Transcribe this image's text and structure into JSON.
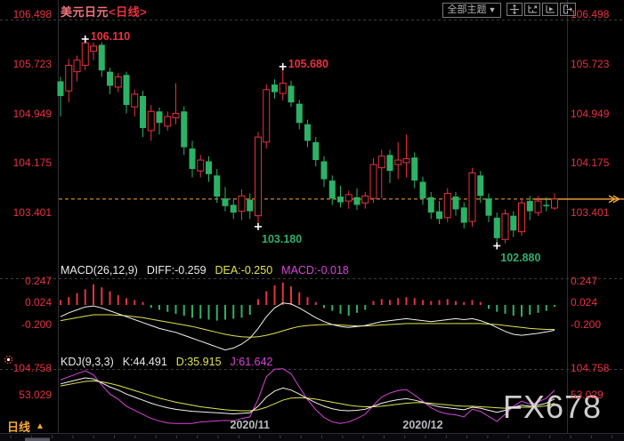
{
  "window": {
    "symbol": "美元日元",
    "period_suffix": "<日线>"
  },
  "toolbar": {
    "theme_selector": "全部主题",
    "theme_arrow": "▼",
    "icons": [
      "pan-icon",
      "axis-scale-icon",
      "axis-play-icon",
      "detach-window-icon"
    ]
  },
  "colors": {
    "red": "#e8323e",
    "green": "#2cb266",
    "orange": "#f7a838",
    "yellow": "#e3e34c",
    "magenta": "#d944d9",
    "white": "#ffffff",
    "separator": "#3c3c44",
    "frame": "#2e2e36",
    "date_text": "#b9b9c0"
  },
  "macd_row": {
    "title": "MACD(26,12,9)",
    "diff": "DIFF:-0.259",
    "dea": "DEA:-0.250",
    "macd": "MACD:-0.018"
  },
  "kdj_row": {
    "title": "KDJ(9,3,3)",
    "k": "K:44.491",
    "d": "D:35.915",
    "j": "J:61.642"
  },
  "footer": {
    "period_tab": "日线",
    "tab_arrow": "▲"
  },
  "watermark": "FX678",
  "right_line_marker": "≫",
  "chart_data": {
    "type": "candlestick",
    "symbol": "美元日元",
    "period": "日线",
    "price_axis_ticks": [
      "106.498",
      "105.723",
      "104.949",
      "104.175",
      "103.401"
    ],
    "price_axis_values": [
      106.498,
      105.723,
      104.949,
      104.175,
      103.401
    ],
    "last_price_line": 103.61,
    "x_tick_labels": [
      "2020/11",
      "2020/12"
    ],
    "x_tick_indices": [
      23,
      44
    ],
    "annotations": [
      {
        "text": "106.110",
        "price": 106.11,
        "index": 3,
        "kind": "high"
      },
      {
        "text": "105.680",
        "price": 105.68,
        "index": 27,
        "kind": "high"
      },
      {
        "text": "103.180",
        "price": 103.18,
        "index": 24,
        "kind": "low"
      },
      {
        "text": "102.880",
        "price": 102.88,
        "index": 53,
        "kind": "low"
      }
    ],
    "candles_ohlc": [
      [
        105.45,
        105.52,
        104.9,
        105.22
      ],
      [
        105.3,
        105.8,
        105.12,
        105.7
      ],
      [
        105.6,
        105.85,
        105.45,
        105.78
      ],
      [
        105.7,
        106.11,
        105.62,
        106.05
      ],
      [
        105.92,
        106.06,
        105.78,
        106.0
      ],
      [
        106.02,
        106.06,
        105.52,
        105.62
      ],
      [
        105.6,
        105.66,
        105.25,
        105.38
      ],
      [
        105.36,
        105.58,
        105.28,
        105.52
      ],
      [
        105.55,
        105.6,
        104.95,
        105.08
      ],
      [
        105.05,
        105.32,
        104.9,
        105.25
      ],
      [
        105.22,
        105.3,
        104.58,
        104.72
      ],
      [
        104.68,
        105.08,
        104.52,
        104.98
      ],
      [
        104.98,
        105.04,
        104.62,
        104.8
      ],
      [
        104.75,
        104.98,
        104.68,
        104.9
      ],
      [
        104.88,
        105.42,
        104.78,
        104.95
      ],
      [
        104.98,
        105.06,
        104.3,
        104.42
      ],
      [
        104.4,
        104.52,
        103.95,
        104.08
      ],
      [
        104.05,
        104.3,
        103.95,
        104.22
      ],
      [
        104.2,
        104.28,
        103.88,
        104.0
      ],
      [
        103.98,
        104.08,
        103.55,
        103.65
      ],
      [
        103.62,
        103.8,
        103.42,
        103.5
      ],
      [
        103.52,
        103.6,
        103.3,
        103.4
      ],
      [
        103.42,
        103.76,
        103.28,
        103.66
      ],
      [
        103.6,
        103.7,
        103.3,
        103.42
      ],
      [
        103.35,
        104.66,
        103.18,
        104.58
      ],
      [
        104.5,
        105.4,
        104.4,
        105.32
      ],
      [
        105.4,
        105.48,
        105.18,
        105.28
      ],
      [
        105.26,
        105.68,
        105.15,
        105.42
      ],
      [
        105.38,
        105.46,
        105.05,
        105.12
      ],
      [
        105.1,
        105.16,
        104.7,
        104.8
      ],
      [
        104.78,
        104.85,
        104.42,
        104.52
      ],
      [
        104.5,
        104.58,
        104.12,
        104.22
      ],
      [
        104.2,
        104.28,
        103.8,
        103.92
      ],
      [
        103.9,
        103.98,
        103.52,
        103.62
      ],
      [
        103.65,
        103.82,
        103.48,
        103.56
      ],
      [
        103.58,
        103.74,
        103.46,
        103.68
      ],
      [
        103.64,
        103.78,
        103.44,
        103.52
      ],
      [
        103.55,
        103.72,
        103.46,
        103.66
      ],
      [
        103.62,
        104.25,
        103.55,
        104.15
      ],
      [
        104.1,
        104.38,
        103.62,
        104.28
      ],
      [
        104.3,
        104.38,
        103.86,
        104.05
      ],
      [
        104.15,
        104.5,
        103.92,
        104.22
      ],
      [
        104.18,
        104.62,
        103.95,
        104.24
      ],
      [
        104.26,
        104.34,
        103.78,
        103.9
      ],
      [
        103.88,
        103.96,
        103.52,
        103.62
      ],
      [
        103.64,
        103.72,
        103.3,
        103.4
      ],
      [
        103.42,
        103.58,
        103.22,
        103.3
      ],
      [
        103.32,
        103.78,
        103.25,
        103.7
      ],
      [
        103.65,
        103.72,
        103.35,
        103.45
      ],
      [
        103.48,
        103.56,
        103.15,
        103.24
      ],
      [
        103.26,
        104.1,
        103.18,
        104.02
      ],
      [
        103.98,
        104.05,
        103.55,
        103.66
      ],
      [
        103.62,
        103.7,
        103.25,
        103.35
      ],
      [
        103.32,
        103.4,
        102.88,
        103.0
      ],
      [
        102.98,
        103.45,
        102.92,
        103.38
      ],
      [
        103.35,
        103.42,
        103.02,
        103.12
      ],
      [
        103.1,
        103.62,
        103.04,
        103.55
      ],
      [
        103.58,
        103.66,
        103.28,
        103.42
      ],
      [
        103.4,
        103.66,
        103.35,
        103.58
      ],
      [
        103.52,
        103.64,
        103.42,
        103.5
      ],
      [
        103.47,
        103.7,
        103.44,
        103.61
      ]
    ],
    "macd": {
      "axis_ticks": [
        "0.247",
        "0.024",
        "-0.200"
      ],
      "axis_values": [
        0.247,
        0.024,
        -0.2
      ],
      "hist": [
        0.05,
        0.08,
        0.12,
        0.16,
        0.21,
        0.18,
        0.14,
        0.1,
        0.07,
        0.05,
        0.03,
        -0.03,
        -0.05,
        -0.07,
        -0.09,
        -0.11,
        -0.13,
        -0.14,
        -0.15,
        -0.16,
        -0.15,
        -0.14,
        -0.13,
        -0.1,
        0.06,
        0.14,
        0.2,
        0.23,
        0.19,
        0.13,
        0.08,
        0.03,
        -0.03,
        -0.06,
        -0.09,
        -0.11,
        -0.08,
        -0.05,
        0.04,
        0.06,
        0.05,
        0.07,
        0.08,
        0.07,
        0.05,
        0.04,
        0.05,
        0.06,
        0.04,
        0.03,
        0.05,
        0.03,
        -0.04,
        -0.07,
        -0.09,
        -0.11,
        -0.12,
        -0.1,
        -0.08,
        -0.06,
        -0.018
      ],
      "diff": [
        -0.12,
        -0.08,
        -0.05,
        -0.02,
        -0.01,
        -0.03,
        -0.06,
        -0.09,
        -0.12,
        -0.15,
        -0.18,
        -0.21,
        -0.24,
        -0.26,
        -0.28,
        -0.31,
        -0.34,
        -0.37,
        -0.4,
        -0.43,
        -0.46,
        -0.44,
        -0.4,
        -0.34,
        -0.24,
        -0.12,
        -0.03,
        0.02,
        0.01,
        -0.03,
        -0.08,
        -0.13,
        -0.17,
        -0.2,
        -0.22,
        -0.23,
        -0.22,
        -0.21,
        -0.19,
        -0.17,
        -0.16,
        -0.15,
        -0.14,
        -0.15,
        -0.16,
        -0.17,
        -0.16,
        -0.15,
        -0.14,
        -0.15,
        -0.14,
        -0.16,
        -0.19,
        -0.23,
        -0.27,
        -0.3,
        -0.31,
        -0.3,
        -0.29,
        -0.275,
        -0.259
      ],
      "dea": [
        -0.16,
        -0.145,
        -0.13,
        -0.115,
        -0.1,
        -0.1,
        -0.1,
        -0.105,
        -0.11,
        -0.12,
        -0.13,
        -0.145,
        -0.16,
        -0.175,
        -0.19,
        -0.205,
        -0.22,
        -0.24,
        -0.26,
        -0.28,
        -0.3,
        -0.315,
        -0.325,
        -0.33,
        -0.325,
        -0.31,
        -0.29,
        -0.265,
        -0.24,
        -0.22,
        -0.21,
        -0.205,
        -0.2,
        -0.2,
        -0.205,
        -0.21,
        -0.215,
        -0.215,
        -0.21,
        -0.205,
        -0.2,
        -0.195,
        -0.19,
        -0.19,
        -0.19,
        -0.19,
        -0.19,
        -0.19,
        -0.19,
        -0.19,
        -0.19,
        -0.19,
        -0.195,
        -0.2,
        -0.21,
        -0.22,
        -0.23,
        -0.24,
        -0.245,
        -0.25,
        -0.25
      ]
    },
    "kdj": {
      "axis_ticks": [
        "104.758",
        "53.029"
      ],
      "axis_values": [
        104.758,
        53.029
      ],
      "k": [
        74,
        78,
        82,
        86,
        84,
        76,
        68,
        62,
        54,
        48,
        42,
        36,
        31,
        27,
        24,
        22,
        20,
        19,
        18,
        17,
        16,
        15,
        16,
        17,
        30,
        48,
        60,
        66,
        62,
        54,
        45,
        37,
        30,
        25,
        22,
        21,
        22,
        24,
        30,
        36,
        40,
        43,
        45,
        42,
        38,
        33,
        29,
        27,
        25,
        23,
        28,
        26,
        22,
        18,
        22,
        28,
        32,
        30,
        32,
        36,
        44.491
      ],
      "d": [
        70,
        73,
        76,
        79,
        80,
        78,
        75,
        71,
        66,
        61,
        56,
        51,
        46,
        42,
        38,
        35,
        32,
        29,
        27,
        25,
        23,
        22,
        21,
        21,
        23,
        28,
        35,
        42,
        46,
        47,
        46,
        44,
        41,
        38,
        35,
        32,
        30,
        29,
        29,
        30,
        32,
        34,
        36,
        37,
        37,
        36,
        34,
        33,
        31,
        30,
        30,
        29,
        28,
        27,
        26,
        27,
        28,
        28,
        29,
        31,
        35.915
      ],
      "j": [
        82,
        88,
        94,
        100,
        92,
        72,
        54,
        44,
        30,
        22,
        14,
        6,
        1,
        -3,
        -4,
        -4,
        -4,
        -1,
        0,
        1,
        2,
        1,
        6,
        9,
        44,
        88,
        103,
        104,
        94,
        68,
        43,
        23,
        8,
        -1,
        -4,
        -1,
        6,
        14,
        32,
        48,
        56,
        61,
        63,
        52,
        40,
        27,
        19,
        15,
        13,
        9,
        24,
        20,
        10,
        0,
        14,
        30,
        40,
        34,
        38,
        46,
        61.642
      ]
    }
  }
}
